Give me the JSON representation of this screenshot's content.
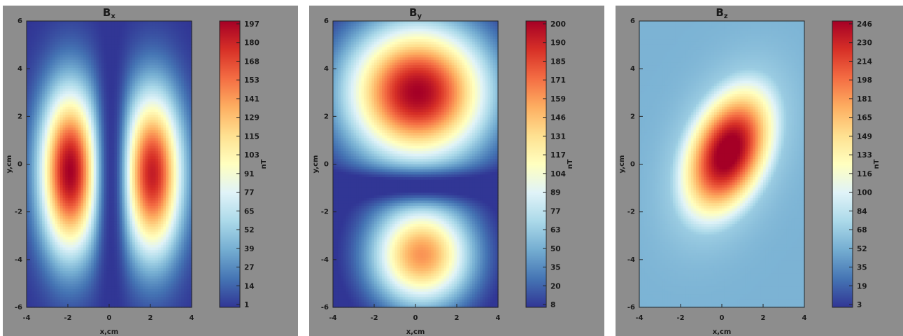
{
  "colormap": [
    "#313695",
    "#4575b4",
    "#74add1",
    "#abd9e9",
    "#e0f3f8",
    "#ffffbf",
    "#fee090",
    "#fdae61",
    "#f46d43",
    "#d73027",
    "#a50026"
  ],
  "background_color": "#8d8d8d",
  "chart_data": [
    {
      "type": "heatmap",
      "title": "B",
      "title_subscript": "x",
      "xlabel": "x,cm",
      "ylabel": "y,cm",
      "colorbar_label": "nT",
      "xlim": [
        -4,
        4
      ],
      "ylim": [
        -6,
        6
      ],
      "xticks": [
        -4,
        -2,
        0,
        2,
        4
      ],
      "yticks": [
        -6,
        -4,
        -2,
        0,
        2,
        4,
        6
      ],
      "colorbar_ticks": [
        "197",
        "180",
        "168",
        "153",
        "141",
        "129",
        "115",
        "103",
        "91",
        "77",
        "65",
        "52",
        "39",
        "27",
        "14",
        "1"
      ],
      "value_range": [
        1,
        197
      ],
      "sources": [
        {
          "x": -1.9,
          "y": -0.3,
          "sx": 1.0,
          "sy": 2.4,
          "amplitude": 197
        },
        {
          "x": 2.1,
          "y": -0.4,
          "sx": 1.0,
          "sy": 2.4,
          "amplitude": 185
        }
      ],
      "notch": {
        "axis": "x",
        "at": 0.1,
        "width": 0.45
      }
    },
    {
      "type": "heatmap",
      "title": "B",
      "title_subscript": "y",
      "xlabel": "x,cm",
      "ylabel": "y,cm",
      "colorbar_label": "nT",
      "xlim": [
        -4,
        4
      ],
      "ylim": [
        -6,
        6
      ],
      "xticks": [
        -4,
        -2,
        0,
        2,
        4
      ],
      "yticks": [
        -6,
        -4,
        -2,
        0,
        2,
        4,
        6
      ],
      "colorbar_ticks": [
        "200",
        "190",
        "185",
        "171",
        "159",
        "146",
        "131",
        "117",
        "104",
        "89",
        "77",
        "63",
        "50",
        "35",
        "20",
        "8"
      ],
      "value_range": [
        8,
        200
      ],
      "sources": [
        {
          "x": 0.1,
          "y": 3.0,
          "sx": 2.4,
          "sy": 2.0,
          "amplitude": 200
        },
        {
          "x": 0.3,
          "y": -3.8,
          "sx": 1.7,
          "sy": 1.5,
          "amplitude": 150
        }
      ],
      "notch": {
        "axis": "y",
        "at": -0.9,
        "width": 0.45
      }
    },
    {
      "type": "heatmap",
      "title": "B",
      "title_subscript": "z",
      "xlabel": "x,cm",
      "ylabel": "y,cm",
      "colorbar_label": "nT",
      "xlim": [
        -4,
        4
      ],
      "ylim": [
        -6,
        6
      ],
      "xticks": [
        -4,
        -2,
        0,
        2,
        4
      ],
      "yticks": [
        -6,
        -4,
        -2,
        0,
        2,
        4,
        6
      ],
      "colorbar_ticks": [
        "246",
        "230",
        "214",
        "198",
        "181",
        "165",
        "149",
        "133",
        "116",
        "100",
        "84",
        "68",
        "52",
        "35",
        "19",
        "3"
      ],
      "value_range": [
        3,
        246
      ],
      "baseline": 55,
      "sources": [
        {
          "x": 0.3,
          "y": 0.5,
          "sx": 1.4,
          "sy": 2.2,
          "rotation_deg": 30,
          "amplitude": 246
        }
      ]
    }
  ]
}
